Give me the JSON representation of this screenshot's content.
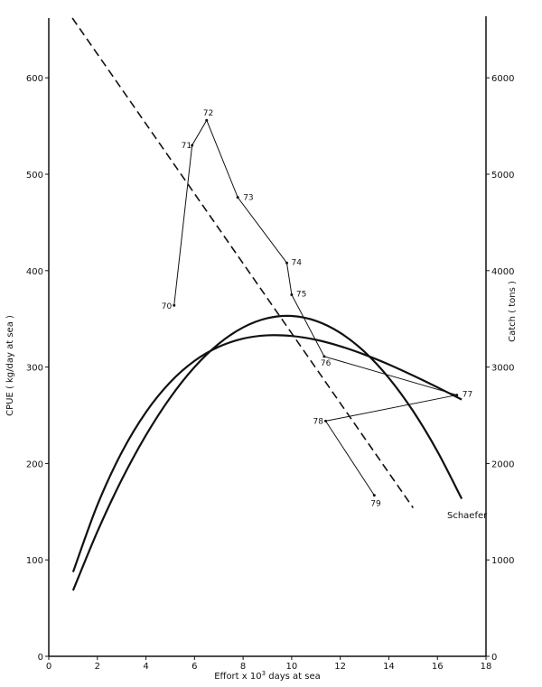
{
  "chart_data": {
    "type": "line",
    "title": "",
    "xlabel": "Effort x 10",
    "xlabel_sup": "3",
    "xlabel_tail": " days at sea",
    "ylabel_left": "CPUE ( kg/day at sea )",
    "ylabel_right": "Catch ( tons )",
    "xlim": [
      0,
      18
    ],
    "ylim_left": [
      0,
      660
    ],
    "ylim_right": [
      0,
      6600
    ],
    "grid": false,
    "x_ticks": [
      "0",
      "2",
      "4",
      "6",
      "8",
      "10",
      "12",
      "14",
      "16",
      "18"
    ],
    "y_left_ticks": [
      "0",
      "100",
      "200",
      "300",
      "400",
      "500",
      "600"
    ],
    "y_right_ticks": [
      "0",
      "1000",
      "2000",
      "3000",
      "4000",
      "5000",
      "6000"
    ],
    "series": [
      {
        "axis": "left",
        "style": "solid-thin-labeled",
        "points": [
          {
            "label": "70",
            "x": 5.16,
            "y": 364
          },
          {
            "label": "71",
            "x": 5.9,
            "y": 530
          },
          {
            "label": "72",
            "x": 6.5,
            "y": 556
          },
          {
            "label": "73",
            "x": 7.78,
            "y": 476
          },
          {
            "label": "74",
            "x": 9.8,
            "y": 408
          },
          {
            "label": "75",
            "x": 10.0,
            "y": 375
          },
          {
            "label": "76",
            "x": 11.34,
            "y": 311
          },
          {
            "label": "77",
            "x": 16.8,
            "y": 271
          },
          {
            "label": "78",
            "x": 11.4,
            "y": 244
          },
          {
            "label": "79",
            "x": 13.4,
            "y": 167
          }
        ]
      },
      {
        "axis": "left",
        "style": "dashed",
        "points": [
          {
            "x": 0.97,
            "y": 662
          },
          {
            "x": 15.0,
            "y": 154
          }
        ]
      },
      {
        "axis": "right",
        "style": "solid-thick",
        "x": [
          1,
          2,
          3,
          4,
          5,
          6,
          7,
          8,
          9,
          10,
          11,
          12,
          13,
          14,
          15,
          16,
          17
        ],
        "y": [
          874,
          1569,
          2114,
          2532,
          2843,
          3064,
          3210,
          3295,
          3329,
          3322,
          3283,
          3216,
          3129,
          3027,
          2912,
          2790,
          2663
        ]
      },
      {
        "axis": "right",
        "style": "solid-thick",
        "name": "Schaefer",
        "x": [
          1,
          2,
          3,
          4,
          5,
          6,
          7,
          8,
          9,
          10,
          11,
          12,
          13,
          14,
          15,
          16,
          17
        ],
        "y": [
          683,
          1293,
          1830,
          2293,
          2683,
          3000,
          3242,
          3411,
          3507,
          3530,
          3479,
          3355,
          3158,
          2887,
          2543,
          2125,
          1634
        ]
      }
    ],
    "annotations": [
      "Schaefer"
    ]
  }
}
